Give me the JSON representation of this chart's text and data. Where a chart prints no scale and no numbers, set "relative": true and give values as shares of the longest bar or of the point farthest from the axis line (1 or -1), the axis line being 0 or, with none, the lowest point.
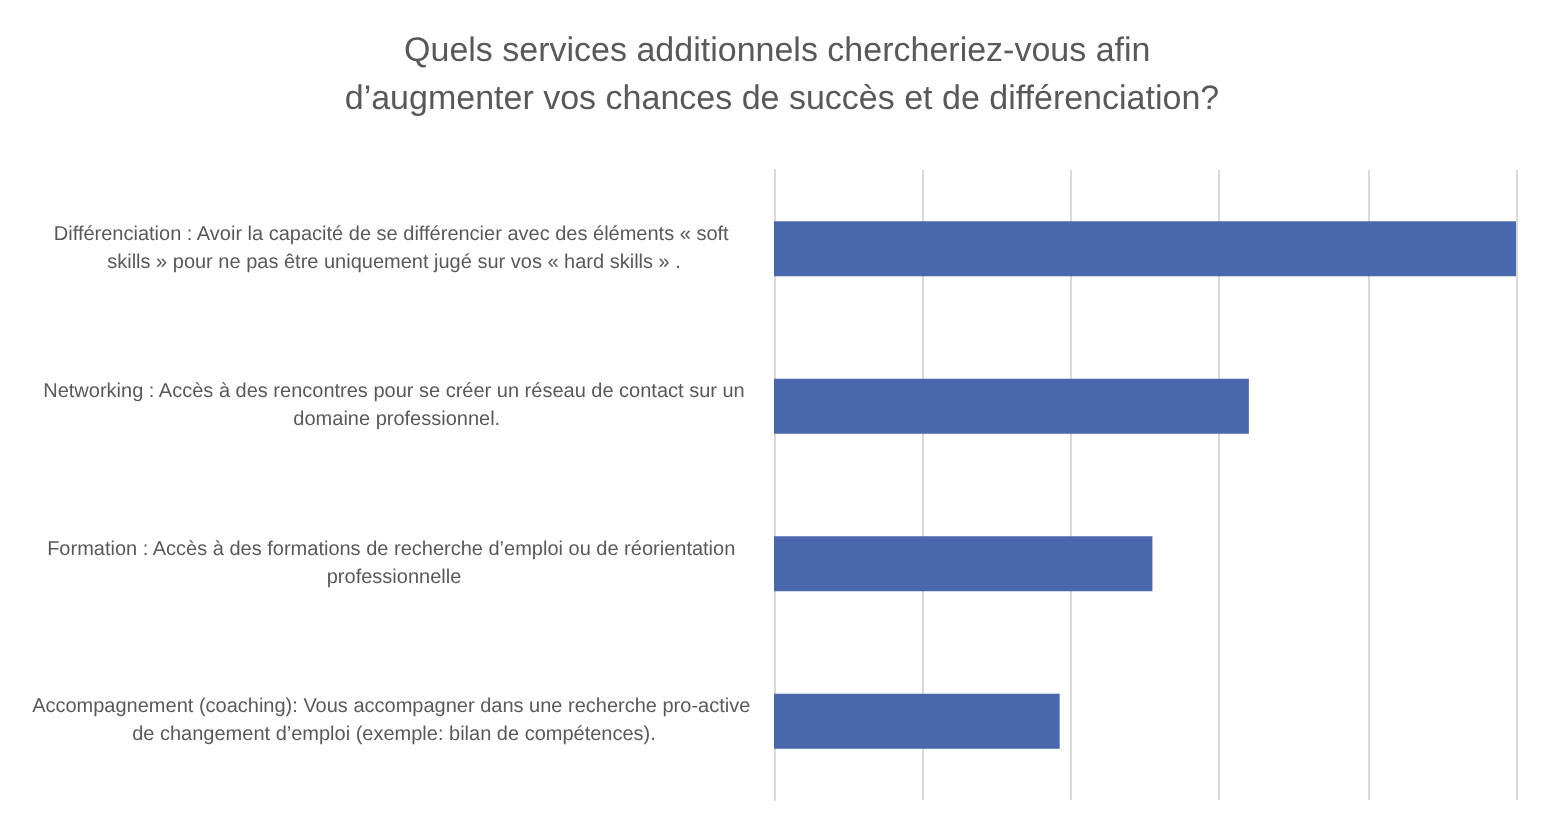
{
  "chart_data": {
    "type": "bar",
    "orientation": "horizontal",
    "relative": true,
    "title": "Quels services additionnels chercheriez-vous afin d’augmenter vos chances de succès et de différenciation?",
    "categories": [
      "Différenciation : Avoir la capacité de se différencier avec des éléments « soft skills » pour ne pas être uniquement jugé sur vos « hard skills » .",
      "Networking : Accès à des rencontres pour se créer un réseau de contact sur un domaine professionnel.",
      "Formation : Accès à des formations de recherche d’emploi ou de réorientation professionnelle",
      "Accompagnement (coaching): Vous accompagner dans une recherche pro-active de changement d’emploi (exemple: bilan de compétences)."
    ],
    "values": [
      1,
      0.64,
      0.51,
      0.385
    ],
    "color": "#4a67ae",
    "grid": "x"
  }
}
